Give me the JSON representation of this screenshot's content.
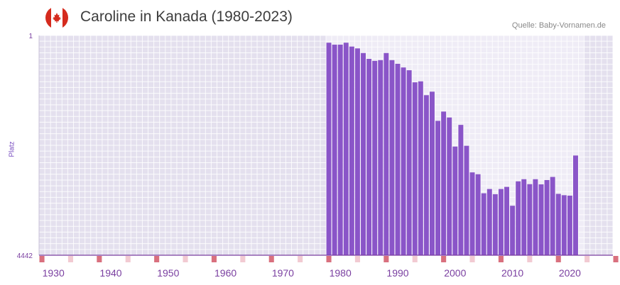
{
  "header": {
    "title": "Caroline in Kanada (1980-2023)",
    "source": "Quelle: Baby-Vornamen.de",
    "flag_icon": "canada-flag-icon"
  },
  "chart_data": {
    "type": "bar",
    "title": "Caroline in Kanada (1980-2023)",
    "ylabel": "Platz",
    "xlabel": "",
    "y_axis_inverted": true,
    "ylim": [
      1,
      4442
    ],
    "y_ticks": [
      "1",
      "4442"
    ],
    "xlim": [
      1928,
      2028
    ],
    "x_ticks": [
      "1930",
      "1940",
      "1950",
      "1960",
      "1970",
      "1980",
      "1990",
      "2000",
      "2010",
      "2020"
    ],
    "highlight_band": [
      1978,
      2022
    ],
    "colors": {
      "bar": "#8a55c8",
      "axis": "#7a3fa0",
      "tick_marker": "#d9707e",
      "tick_marker_light": "#f2cad2",
      "plot_bg": "#e4e0ee",
      "band_bg": "#efecf6"
    },
    "years": [
      1978,
      1979,
      1980,
      1981,
      1982,
      1983,
      1984,
      1985,
      1986,
      1987,
      1988,
      1989,
      1990,
      1991,
      1992,
      1993,
      1994,
      1995,
      1996,
      1997,
      1998,
      1999,
      2000,
      2001,
      2002,
      2003,
      2004,
      2005,
      2006,
      2007,
      2008,
      2009,
      2010,
      2011,
      2012,
      2013,
      2014,
      2015,
      2016,
      2017,
      2018,
      2019,
      2020,
      2021
    ],
    "values": [
      148,
      187,
      187,
      148,
      226,
      263,
      356,
      474,
      515,
      500,
      356,
      500,
      574,
      648,
      704,
      948,
      929,
      1208,
      1137,
      1727,
      1539,
      1659,
      2246,
      1808,
      2230,
      2768,
      2805,
      3190,
      3104,
      3209,
      3104,
      3061,
      3442,
      2949,
      2906,
      3006,
      2906,
      3010,
      2923,
      2860,
      3202,
      3229,
      3238,
      2427
    ]
  }
}
